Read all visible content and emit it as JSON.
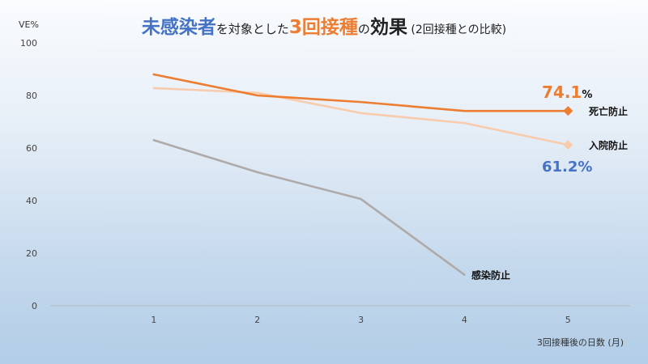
{
  "title": {
    "part1": "未感染者",
    "part2": "を対象とした",
    "part3": "3回接種",
    "part4": "の",
    "part5": "効果",
    "part6": " (2回接種との比較)"
  },
  "colors": {
    "blue": "#4472c4",
    "orange": "#ed7d31",
    "peach": "#f8cbad",
    "gray": "#aeaaaa"
  },
  "chart_data": {
    "type": "line",
    "ylabel": "VE%",
    "xlabel": "3回接種後の日数 (月)",
    "ylim": [
      0,
      100
    ],
    "xlim": [
      0,
      5.6
    ],
    "x": [
      1,
      2,
      3,
      4,
      5
    ],
    "yticks": [
      "0",
      "20",
      "40",
      "60",
      "80",
      "100"
    ],
    "xticks": [
      "1",
      "2",
      "3",
      "4",
      "5"
    ],
    "grid": false,
    "series": [
      {
        "name": "死亡防止",
        "x": [
          1,
          2,
          3,
          4,
          5
        ],
        "values": [
          88,
          80,
          77.5,
          74.1,
          74.1
        ],
        "end_label": "74.1",
        "end_unit": "%"
      },
      {
        "name": "入院防止",
        "x": [
          1,
          2,
          3,
          4,
          5
        ],
        "values": [
          82.8,
          81,
          73.3,
          69.5,
          61.2
        ],
        "end_label": "61.2%"
      },
      {
        "name": "感染防止",
        "x": [
          1,
          2,
          3,
          4
        ],
        "values": [
          63,
          50.8,
          40.6,
          11.8
        ]
      }
    ]
  }
}
